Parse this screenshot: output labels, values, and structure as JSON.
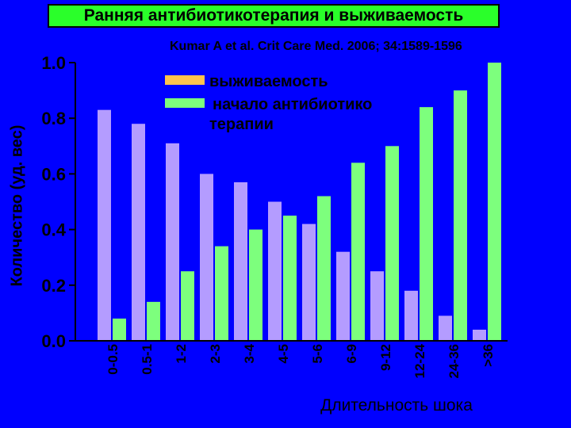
{
  "title": "Ранняя антибиотикотерапия и выживаемость",
  "citation": "Kumar A et al. Crit Care Med. 2006; 34:1589-1596",
  "colors": {
    "background": "#0000ff",
    "title_box": "#2aff2a",
    "survival_legend": "#ffc34d",
    "survival_bar": "#b49cff",
    "antibiotic": "#7dff7d"
  },
  "chart_data": {
    "type": "bar",
    "xlabel": "Длительность шока",
    "ylabel": "Количество (уд. вес)",
    "ylim": [
      0.0,
      1.0
    ],
    "yticks": [
      "0.0",
      "0.2",
      "0.4",
      "0.6",
      "0.8",
      "1.0"
    ],
    "categories": [
      "0-0.5",
      "0.5-1",
      "1-2",
      "2-3",
      "3-4",
      "4-5",
      "5-6",
      "6-9",
      "9-12",
      "12-24",
      "24-36",
      ">36"
    ],
    "series": [
      {
        "name": "выживаемость",
        "values": [
          0.83,
          0.78,
          0.71,
          0.6,
          0.57,
          0.5,
          0.42,
          0.32,
          0.25,
          0.18,
          0.09,
          0.04
        ]
      },
      {
        "name": "начало антибиотико терапии",
        "values": [
          0.08,
          0.14,
          0.25,
          0.34,
          0.4,
          0.45,
          0.52,
          0.64,
          0.7,
          0.84,
          0.9,
          1.0
        ]
      }
    ],
    "legend_placement": "top-center",
    "grid": false
  }
}
